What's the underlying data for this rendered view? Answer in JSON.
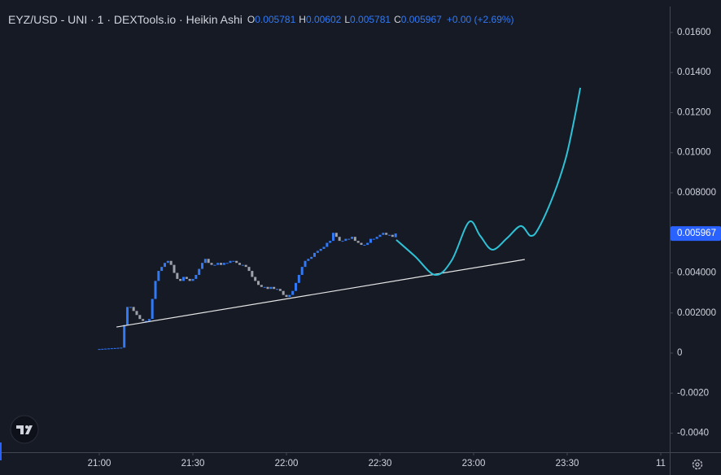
{
  "chart_data": {
    "type": "candlestick",
    "title": "EYZ/USD - UNI · 1 · DEXTools.io · Heikin Ashi",
    "legend": [
      {
        "label": "O",
        "value": 0.005781
      },
      {
        "label": "H",
        "value": 0.00602
      },
      {
        "label": "L",
        "value": 0.005781
      },
      {
        "label": "C",
        "value": 0.005967
      }
    ],
    "change": "+0.00 (+2.69%)",
    "x": [
      0,
      1,
      2,
      3,
      4,
      5,
      6,
      7,
      8,
      9,
      10,
      11,
      12,
      13,
      14,
      15,
      16,
      17,
      18,
      19,
      20,
      21,
      22,
      23,
      24,
      25,
      26,
      27,
      28,
      29,
      30,
      31,
      32,
      33,
      34,
      35,
      36,
      37,
      38,
      39,
      40,
      41,
      42,
      43,
      44,
      45,
      46,
      47,
      48,
      49,
      50,
      51,
      52,
      53,
      54,
      55,
      56,
      57,
      58,
      59,
      60,
      61,
      62,
      63,
      64,
      65,
      66,
      67,
      68,
      69,
      70,
      71,
      72,
      73,
      74,
      75,
      76,
      77,
      78,
      79,
      80,
      81,
      82,
      83,
      84,
      85,
      86,
      87,
      88,
      89,
      90,
      91,
      92,
      93,
      94,
      95
    ],
    "open": [
      0.00019,
      0.0002,
      0.00021,
      0.00022,
      0.00023,
      0.00024,
      0.00025,
      0.00026,
      0.00027,
      0.0014,
      0.0023,
      0.0023,
      0.0021,
      0.0019,
      0.0017,
      0.0016,
      0.0016,
      0.0017,
      0.0027,
      0.0036,
      0.0041,
      0.0043,
      0.0045,
      0.0046,
      0.0044,
      0.004,
      0.0037,
      0.0036,
      0.0038,
      0.0037,
      0.0036,
      0.0037,
      0.0039,
      0.0042,
      0.0045,
      0.0047,
      0.0045,
      0.0044,
      0.0044,
      0.0045,
      0.0044,
      0.0045,
      0.0045,
      0.0046,
      0.0046,
      0.0045,
      0.0044,
      0.0044,
      0.0043,
      0.0041,
      0.0038,
      0.0036,
      0.0034,
      0.0033,
      0.0033,
      0.0032,
      0.0033,
      0.0032,
      0.0032,
      0.0031,
      0.0029,
      0.0028,
      0.0029,
      0.0031,
      0.0035,
      0.0039,
      0.0043,
      0.0046,
      0.0047,
      0.0048,
      0.005,
      0.0051,
      0.0052,
      0.0053,
      0.0055,
      0.0056,
      0.006,
      0.0058,
      0.0056,
      0.0056,
      0.0057,
      0.0057,
      0.0058,
      0.0056,
      0.0055,
      0.0054,
      0.0054,
      0.0055,
      0.0057,
      0.0057,
      0.0058,
      0.0059,
      0.006,
      0.0059,
      0.0059,
      0.005781
    ],
    "close": [
      0.0002,
      0.00021,
      0.00022,
      0.00023,
      0.00024,
      0.00025,
      0.00026,
      0.00027,
      0.0014,
      0.0023,
      0.0023,
      0.0021,
      0.0019,
      0.0017,
      0.0016,
      0.0016,
      0.0017,
      0.0027,
      0.0036,
      0.0041,
      0.0043,
      0.0045,
      0.0046,
      0.0044,
      0.004,
      0.0037,
      0.0036,
      0.0038,
      0.0037,
      0.0036,
      0.0037,
      0.0039,
      0.0042,
      0.0045,
      0.0047,
      0.0045,
      0.0044,
      0.0044,
      0.0045,
      0.0044,
      0.0045,
      0.0045,
      0.0046,
      0.0046,
      0.0045,
      0.0044,
      0.0044,
      0.0043,
      0.0041,
      0.0038,
      0.0036,
      0.0034,
      0.0033,
      0.0033,
      0.0032,
      0.0033,
      0.0032,
      0.0032,
      0.0031,
      0.0029,
      0.0028,
      0.0029,
      0.0031,
      0.0035,
      0.0039,
      0.0043,
      0.0046,
      0.0047,
      0.0048,
      0.005,
      0.0051,
      0.0052,
      0.0053,
      0.0055,
      0.0056,
      0.006,
      0.0058,
      0.0056,
      0.0056,
      0.0057,
      0.0057,
      0.0058,
      0.0056,
      0.0055,
      0.0054,
      0.0054,
      0.0055,
      0.0057,
      0.0057,
      0.0058,
      0.0059,
      0.006,
      0.0059,
      0.0059,
      0.0058,
      0.005967
    ],
    "up_color": "#3179f5",
    "down_color": "#9ea1aa",
    "trendline": {
      "x": [
        5.5,
        136.4
      ],
      "values": [
        0.0013,
        0.00467
      ],
      "color": "#e6e6e6"
    },
    "projection": {
      "x": [
        95.2,
        101.2,
        107.7,
        113,
        118.5,
        122.1,
        126,
        130.7,
        135.1,
        138.3,
        140.9,
        145.6,
        149.5,
        152.1,
        154.2
      ],
      "values": [
        0.00565,
        0.00483,
        0.0039,
        0.00463,
        0.00654,
        0.00585,
        0.00516,
        0.00573,
        0.00634,
        0.00585,
        0.00625,
        0.00788,
        0.0097,
        0.01153,
        0.01324
      ],
      "color": "#2fc1d6"
    },
    "xlim": [
      -31.83,
      182.87
    ],
    "xticks": [
      {
        "value": 0,
        "label": "21:00"
      },
      {
        "value": 30,
        "label": "21:30"
      },
      {
        "value": 60,
        "label": "22:00"
      },
      {
        "value": 90,
        "label": "22:30"
      },
      {
        "value": 120,
        "label": "23:00"
      },
      {
        "value": 150,
        "label": "23:30"
      },
      {
        "value": 180,
        "label": "11"
      }
    ],
    "ylim": [
      -0.00495,
      0.01762
    ],
    "yticks": [
      {
        "value": 0.016,
        "label": "0.01600"
      },
      {
        "value": 0.014,
        "label": "0.01400"
      },
      {
        "value": 0.012,
        "label": "0.01200"
      },
      {
        "value": 0.01,
        "label": "0.01000"
      },
      {
        "value": 0.008,
        "label": "0.008000"
      },
      {
        "value": 0.006,
        "label": "0.006000"
      },
      {
        "value": 0.004,
        "label": "0.004000"
      },
      {
        "value": 0.002,
        "label": "0.002000"
      },
      0,
      {
        "value": -0.002,
        "label": "-0.0020"
      },
      {
        "value": -0.004,
        "label": "-0.0040"
      }
    ]
  }
}
